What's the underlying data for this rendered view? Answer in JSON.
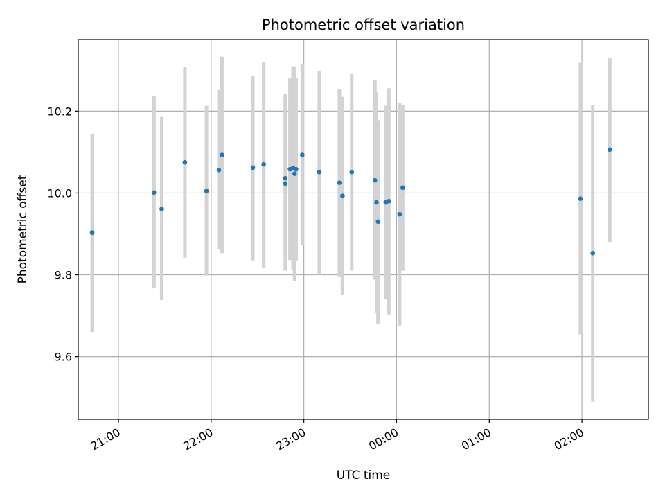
{
  "chart_data": {
    "type": "scatter",
    "title": "Photometric offset variation",
    "xlabel": "UTC time",
    "ylabel": "Photometric offset",
    "x_ticks": [
      "21:00",
      "22:00",
      "23:00",
      "00:00",
      "01:00",
      "02:00"
    ],
    "y_ticks": [
      "9.6",
      "9.8",
      "10.0",
      "10.2"
    ],
    "y_tick_values": [
      9.6,
      9.8,
      10.0,
      10.2
    ],
    "xlim": [
      "20:34",
      "02:43"
    ],
    "ylim": [
      9.447,
      10.375
    ],
    "grid": true,
    "marker_color": "#1f77b4",
    "errorbar_color": "#d3d3d3",
    "series": [
      {
        "points": [
          {
            "t": "20:43",
            "y": 9.903,
            "err_low": 9.66,
            "err_high": 10.145
          },
          {
            "t": "21:23",
            "y": 10.001,
            "err_low": 9.767,
            "err_high": 10.236
          },
          {
            "t": "21:28",
            "y": 9.961,
            "err_low": 9.738,
            "err_high": 10.186
          },
          {
            "t": "21:43",
            "y": 10.075,
            "err_low": 9.842,
            "err_high": 10.307
          },
          {
            "t": "21:57",
            "y": 10.005,
            "err_low": 9.798,
            "err_high": 10.213
          },
          {
            "t": "22:05",
            "y": 10.056,
            "err_low": 9.862,
            "err_high": 10.252
          },
          {
            "t": "22:07",
            "y": 10.093,
            "err_low": 9.853,
            "err_high": 10.333
          },
          {
            "t": "22:27",
            "y": 10.062,
            "err_low": 9.835,
            "err_high": 10.285
          },
          {
            "t": "22:34",
            "y": 10.07,
            "err_low": 9.818,
            "err_high": 10.32
          },
          {
            "t": "22:48",
            "y": 10.036,
            "err_low": 9.83,
            "err_high": 10.243
          },
          {
            "t": "22:48",
            "y": 10.023,
            "err_low": 9.81,
            "err_high": 10.236
          },
          {
            "t": "22:51",
            "y": 10.058,
            "err_low": 9.836,
            "err_high": 10.28
          },
          {
            "t": "22:53",
            "y": 10.061,
            "err_low": 9.812,
            "err_high": 10.31
          },
          {
            "t": "22:54",
            "y": 10.047,
            "err_low": 9.785,
            "err_high": 10.308
          },
          {
            "t": "22:55",
            "y": 10.058,
            "err_low": 9.835,
            "err_high": 10.281
          },
          {
            "t": "22:59",
            "y": 10.093,
            "err_low": 9.872,
            "err_high": 10.314
          },
          {
            "t": "23:10",
            "y": 10.051,
            "err_low": 9.8,
            "err_high": 10.298
          },
          {
            "t": "23:23",
            "y": 10.025,
            "err_low": 9.796,
            "err_high": 10.254
          },
          {
            "t": "23:25",
            "y": 9.993,
            "err_low": 9.752,
            "err_high": 10.235
          },
          {
            "t": "23:31",
            "y": 10.051,
            "err_low": 9.81,
            "err_high": 10.291
          },
          {
            "t": "23:46",
            "y": 10.031,
            "err_low": 9.788,
            "err_high": 10.276
          },
          {
            "t": "23:47",
            "y": 9.977,
            "err_low": 9.707,
            "err_high": 10.247
          },
          {
            "t": "23:48",
            "y": 9.93,
            "err_low": 9.681,
            "err_high": 10.178
          },
          {
            "t": "23:53",
            "y": 9.977,
            "err_low": 9.74,
            "err_high": 10.213
          },
          {
            "t": "23:55",
            "y": 9.98,
            "err_low": 9.703,
            "err_high": 10.256
          },
          {
            "t": "00:02",
            "y": 9.948,
            "err_low": 9.676,
            "err_high": 10.22
          },
          {
            "t": "00:04",
            "y": 10.013,
            "err_low": 9.81,
            "err_high": 10.216
          },
          {
            "t": "01:59",
            "y": 9.986,
            "err_low": 9.654,
            "err_high": 10.318
          },
          {
            "t": "02:07",
            "y": 9.853,
            "err_low": 9.49,
            "err_high": 10.215
          },
          {
            "t": "02:18",
            "y": 10.106,
            "err_low": 9.88,
            "err_high": 10.331
          }
        ]
      }
    ]
  }
}
